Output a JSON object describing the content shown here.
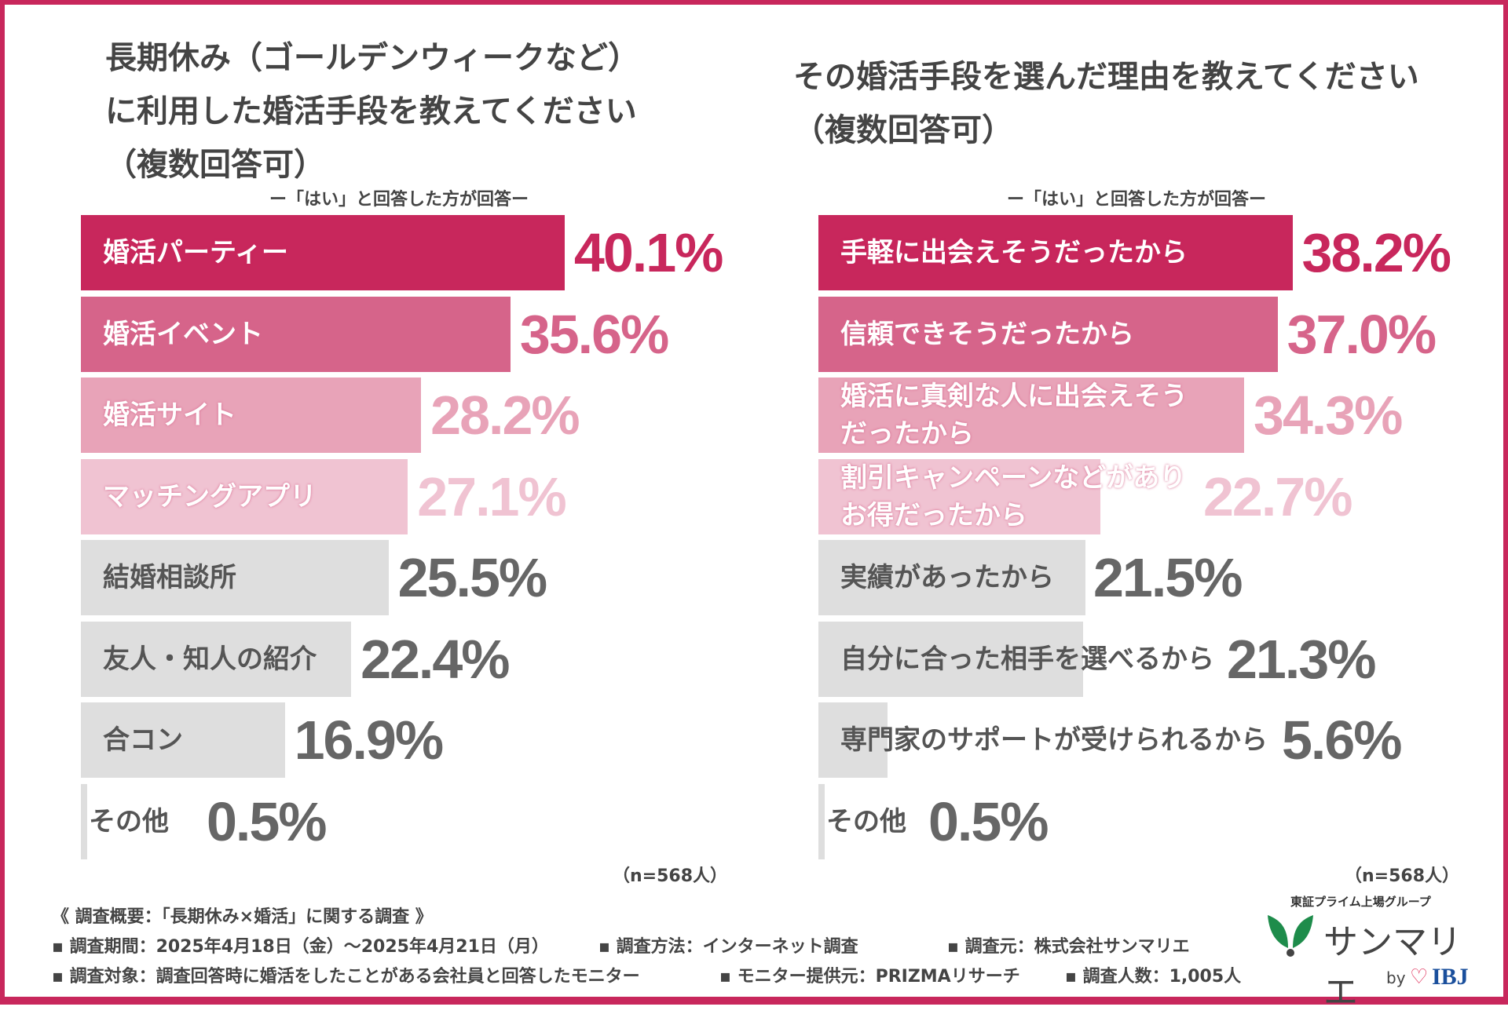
{
  "chart_data": [
    {
      "type": "bar",
      "orientation": "horizontal",
      "title": "長期休み（ゴールデンウィークなど）\nに利用した婚活手段を教えてください\n（複数回答可）",
      "subtitle": "ー「はい」と回答した方が回答ー",
      "note": "（n=568人）",
      "categories": [
        "婚活パーティー",
        "婚活イベント",
        "婚活サイト",
        "マッチングアプリ",
        "結婚相談所",
        "友人・知人の紹介",
        "合コン",
        "その他"
      ],
      "values": [
        40.1,
        35.6,
        28.2,
        27.1,
        25.5,
        22.4,
        16.9,
        0.5
      ],
      "labels": [
        "40.1%",
        "35.6%",
        "28.2%",
        "27.1%",
        "25.5%",
        "22.4%",
        "16.9%",
        "0.5%"
      ],
      "unit": "%"
    },
    {
      "type": "bar",
      "orientation": "horizontal",
      "title": "その婚活手段を選んだ理由を教えてください\n（複数回答可）",
      "subtitle": "ー「はい」と回答した方が回答ー",
      "note": "（n=568人）",
      "categories": [
        "手軽に出会えそうだったから",
        "信頼できそうだったから",
        "婚活に真剣な人に出会えそう\nだったから",
        "割引キャンペーンなどがあり\nお得だったから",
        "実績があったから",
        "自分に合った相手を選べるから",
        "専門家のサポートが受けられるから",
        "その他"
      ],
      "values": [
        38.2,
        37.0,
        34.3,
        22.7,
        21.5,
        21.3,
        5.6,
        0.5
      ],
      "labels": [
        "38.2%",
        "37.0%",
        "34.3%",
        "22.7%",
        "21.5%",
        "21.3%",
        "5.6%",
        "0.5%"
      ],
      "unit": "%"
    }
  ],
  "colors": {
    "rank1": "#c8275c",
    "rank2": "#d6648a",
    "rank3": "#e8a3b8",
    "rank4": "#f0c3d2",
    "other": "#dedede",
    "other_text": "#666666",
    "frame": "#c8275c"
  },
  "footer": {
    "heading": "《 調査概要：「長期休み×婚活」に関する調査 》",
    "items": [
      "▪ 調査期間：2025年4月18日（金）～2025年4月21日（月）",
      "▪ 調査方法：インターネット調査",
      "▪ 調査元：株式会社サンマリエ",
      "▪ 調査対象：調査回答時に婚活をしたことがある会社員と回答したモニター",
      "▪ モニター提供元：PRIZMAリサーチ",
      "▪ 調査人数：1,005人"
    ]
  },
  "logo": {
    "tagline": "東証プライム上場グループ",
    "name": "サンマリエ",
    "by": "by",
    "ibj": "IBJ"
  }
}
